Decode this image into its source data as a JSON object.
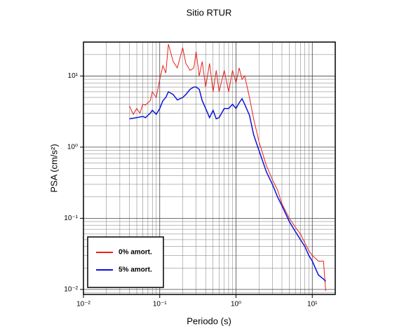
{
  "chart_data": {
    "type": "line",
    "title": "Sitio RTUR",
    "x_label": "Periodo (s)",
    "y_label": "PSA (cm/s²)",
    "x": [
      0.04,
      0.045,
      0.05,
      0.055,
      0.06,
      0.065,
      0.07,
      0.075,
      0.08,
      0.09,
      0.1,
      0.11,
      0.12,
      0.13,
      0.15,
      0.17,
      0.2,
      0.22,
      0.25,
      0.28,
      0.3,
      0.33,
      0.36,
      0.4,
      0.45,
      0.5,
      0.55,
      0.6,
      0.7,
      0.8,
      0.9,
      1.0,
      1.1,
      1.2,
      1.3,
      1.5,
      1.7,
      2,
      2.5,
      3,
      3.5,
      4,
      5,
      6,
      7,
      8,
      9,
      10,
      12,
      14,
      15
    ],
    "series": [
      {
        "name": "0% amort.",
        "color": "#e8211b",
        "values": [
          3.8,
          2.9,
          3.5,
          3.0,
          4,
          3.9,
          4.2,
          4.5,
          6,
          5,
          9,
          14,
          11,
          28,
          16,
          13,
          25,
          15,
          12,
          13,
          22,
          10,
          16,
          7,
          15,
          6,
          12,
          6,
          12,
          6,
          12,
          8,
          13,
          9,
          10,
          5,
          2.5,
          1.2,
          0.55,
          0.35,
          0.25,
          0.16,
          0.1,
          0.075,
          0.06,
          0.045,
          0.035,
          0.03,
          0.025,
          0.025,
          0.0095
        ]
      },
      {
        "name": "5% amort.",
        "color": "#0a14d8",
        "values": [
          2.5,
          2.55,
          2.6,
          2.65,
          2.7,
          2.6,
          2.8,
          3.0,
          3.3,
          2.9,
          3.5,
          4.5,
          5.0,
          6.0,
          5.5,
          4.6,
          5.0,
          5.5,
          6.5,
          7.0,
          7.0,
          6.5,
          4.5,
          3.5,
          2.6,
          3.3,
          2.5,
          2.6,
          3.5,
          3.5,
          4.0,
          3.5,
          4.2,
          4.8,
          4.0,
          2.8,
          1.5,
          0.9,
          0.45,
          0.3,
          0.2,
          0.15,
          0.09,
          0.065,
          0.05,
          0.04,
          0.03,
          0.025,
          0.016,
          0.014,
          0.013
        ]
      }
    ],
    "xlim": [
      0.01,
      20
    ],
    "ylim": [
      0.0085,
      30
    ],
    "log_x": true,
    "log_y": true,
    "grid": true,
    "legend": "lower left",
    "xticks": [
      {
        "value": 0.01,
        "label": "10⁻²"
      },
      {
        "value": 0.1,
        "label": "10⁻¹"
      },
      {
        "value": 1,
        "label": "10⁰"
      },
      {
        "value": 10,
        "label": "10¹"
      }
    ],
    "yticks": [
      {
        "value": 0.01,
        "label": "10⁻²"
      },
      {
        "value": 0.1,
        "label": "10⁻¹"
      },
      {
        "value": 1,
        "label": "10⁰"
      },
      {
        "value": 10,
        "label": "10¹"
      }
    ]
  }
}
